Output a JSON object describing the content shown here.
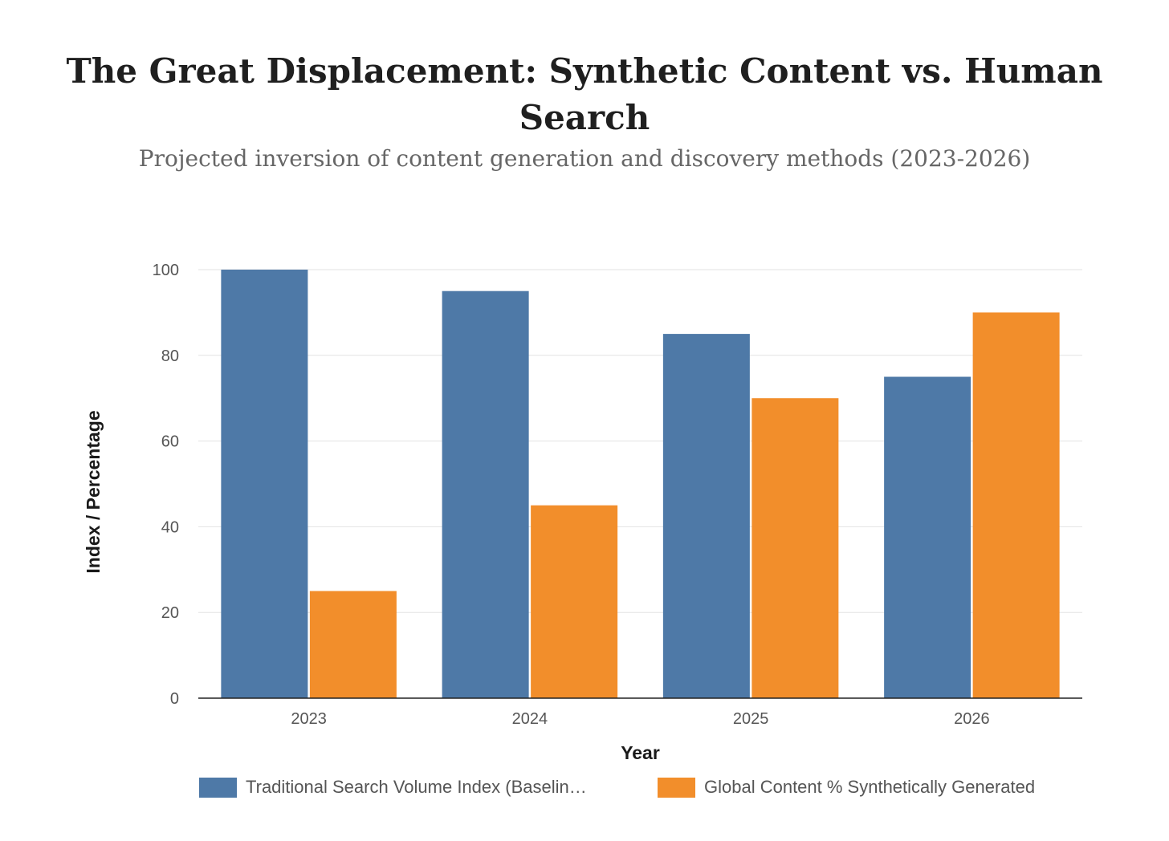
{
  "chart_data": {
    "type": "bar",
    "title": "The Great Displacement: Synthetic Content vs. Human Search",
    "subtitle": "Projected inversion of content generation and discovery methods (2023-2026)",
    "xlabel": "Year",
    "ylabel": "Index / Percentage",
    "categories": [
      "2023",
      "2024",
      "2025",
      "2026"
    ],
    "ylim": [
      0,
      100
    ],
    "yticks": [
      "0",
      "20",
      "40",
      "60",
      "80",
      "100"
    ],
    "grid": true,
    "legend_position": "bottom",
    "series": [
      {
        "name": "Traditional Search Volume Index (Baselin…",
        "values": [
          100,
          95,
          85,
          75
        ],
        "color": "#4e79a7"
      },
      {
        "name": "Global Content % Synthetically Generated",
        "values": [
          25,
          45,
          70,
          90
        ],
        "color": "#f28e2b"
      }
    ]
  }
}
